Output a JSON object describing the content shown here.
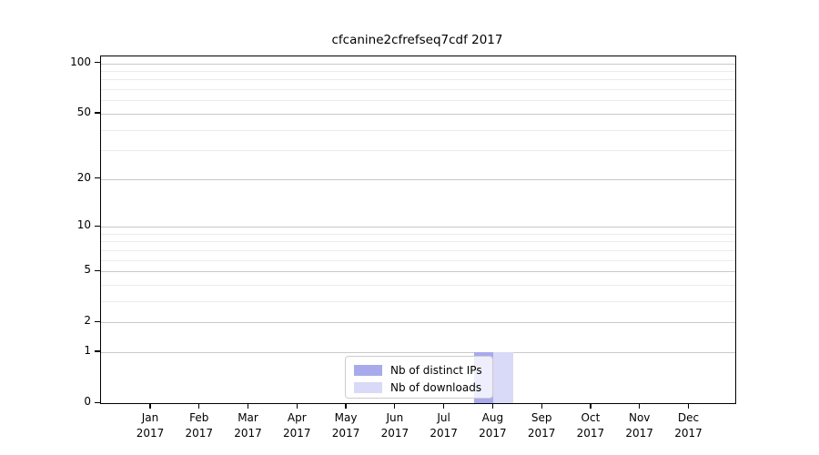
{
  "chart_data": {
    "type": "bar",
    "title": "cfcanine2cfrefseq7cdf 2017",
    "x_categories": [
      "Jan 2017",
      "Feb 2017",
      "Mar 2017",
      "Apr 2017",
      "May 2017",
      "Jun 2017",
      "Jul 2017",
      "Aug 2017",
      "Sep 2017",
      "Oct 2017",
      "Nov 2017",
      "Dec 2017"
    ],
    "series": [
      {
        "name": "Nb of distinct IPs",
        "color": "#a9a9ee",
        "values": [
          0,
          0,
          0,
          0,
          0,
          0,
          0,
          1,
          0,
          0,
          0,
          0
        ]
      },
      {
        "name": "Nb of downloads",
        "color": "#d9d9f8",
        "values": [
          0,
          0,
          0,
          0,
          0,
          0,
          0,
          1,
          0,
          0,
          0,
          0
        ]
      }
    ],
    "xlabel": "",
    "ylabel": "",
    "yscale": "log1p",
    "ylim": [
      0,
      110
    ],
    "yticks": [
      0,
      1,
      2,
      5,
      10,
      20,
      50,
      100
    ],
    "yticks_minor": [
      3,
      4,
      6,
      7,
      8,
      9,
      30,
      40,
      60,
      70,
      80,
      90
    ],
    "grid": true,
    "legend_position": "lower center"
  }
}
